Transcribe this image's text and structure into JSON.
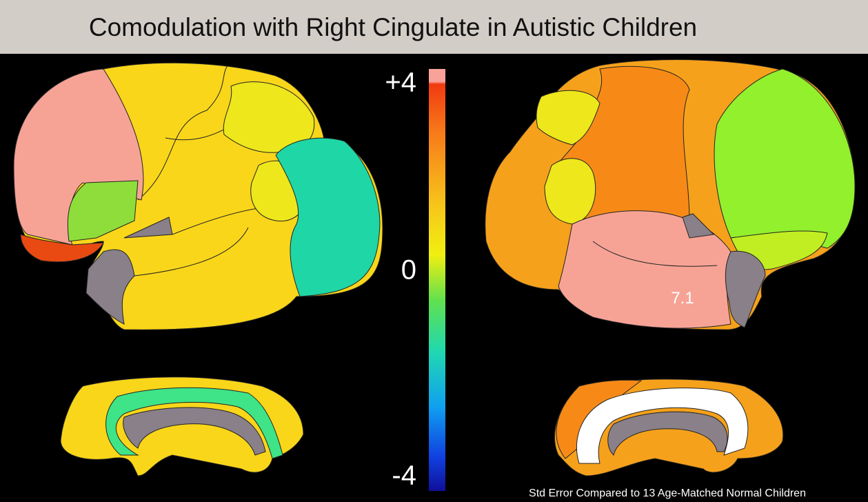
{
  "title": "Comodulation with Right Cingulate in Autistic Children",
  "colorbar": {
    "top": "+4",
    "middle": "0",
    "bottom": "-4"
  },
  "annotation": "7.1",
  "footnote": "Std Error Compared to 13 Age-Matched Normal Children"
}
